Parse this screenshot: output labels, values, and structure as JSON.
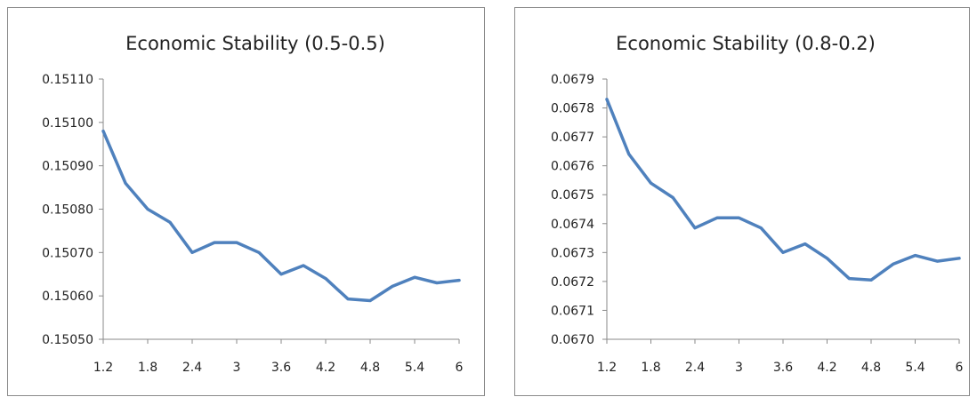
{
  "chart_data": [
    {
      "type": "line",
      "title": "Economic Stability (0.5-0.5)",
      "xlabel": "",
      "ylabel": "",
      "categories": [
        "1.2",
        "1.8",
        "2.4",
        "3",
        "3.6",
        "4.2",
        "4.8",
        "5.4",
        "6"
      ],
      "x": [
        1.2,
        1.5,
        1.8,
        2.1,
        2.4,
        2.7,
        3.0,
        3.3,
        3.6,
        3.9,
        4.2,
        4.5,
        4.8,
        5.1,
        5.4,
        5.7,
        6.0
      ],
      "y_ticks": [
        "0.15050",
        "0.15060",
        "0.15070",
        "0.15080",
        "0.15090",
        "0.15100",
        "0.15110"
      ],
      "ylim": [
        0.1505,
        0.1511
      ],
      "series": [
        {
          "values": [
            0.15098,
            0.15086,
            0.1508,
            0.15077,
            0.1507,
            0.150723,
            0.150723,
            0.1507,
            0.15065,
            0.15067,
            0.15064,
            0.150593,
            0.150589,
            0.150622,
            0.150643,
            0.15063,
            0.150636
          ],
          "color": "#4f81bd"
        }
      ],
      "grid": false,
      "legend": "none"
    },
    {
      "type": "line",
      "title": "Economic Stability (0.8-0.2)",
      "xlabel": "",
      "ylabel": "",
      "categories": [
        "1.2",
        "1.8",
        "2.4",
        "3",
        "3.6",
        "4.2",
        "4.8",
        "5.4",
        "6"
      ],
      "x": [
        1.2,
        1.5,
        1.8,
        2.1,
        2.4,
        2.7,
        3.0,
        3.3,
        3.6,
        3.9,
        4.2,
        4.5,
        4.8,
        5.1,
        5.4,
        5.7,
        6.0
      ],
      "y_ticks": [
        "0.0670",
        "0.0671",
        "0.0672",
        "0.0673",
        "0.0674",
        "0.0675",
        "0.0676",
        "0.0677",
        "0.0678",
        "0.0679"
      ],
      "ylim": [
        0.067,
        0.0679
      ],
      "series": [
        {
          "values": [
            0.06783,
            0.06764,
            0.06754,
            0.06749,
            0.067385,
            0.06742,
            0.06742,
            0.067385,
            0.0673,
            0.06733,
            0.06728,
            0.06721,
            0.067205,
            0.06726,
            0.06729,
            0.06727,
            0.06728
          ],
          "color": "#4f81bd"
        }
      ],
      "grid": false,
      "legend": "none"
    }
  ]
}
